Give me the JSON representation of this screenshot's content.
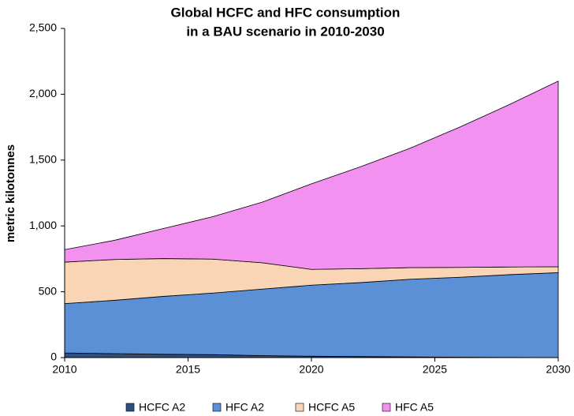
{
  "chart_data": {
    "type": "stacked-area",
    "title": [
      "Global HCFC and HFC consumption",
      "in a BAU scenario in 2010-2030"
    ],
    "y_label": "metric kilotonnes",
    "x": [
      2010,
      2012,
      2014,
      2016,
      2018,
      2020,
      2022,
      2024,
      2026,
      2028,
      2030
    ],
    "xlim": [
      2010,
      2030
    ],
    "xticks": [
      2010,
      2015,
      2020,
      2025,
      2030
    ],
    "ylim": [
      0,
      2500
    ],
    "yticks": [
      0,
      500,
      {
        "value": 1000,
        "label": "1,000"
      },
      {
        "value": 1500,
        "label": "1,500"
      },
      {
        "value": 2000,
        "label": "2,000"
      },
      {
        "value": 2500,
        "label": "2,500"
      }
    ],
    "legend": "bottom",
    "series": [
      {
        "name": "HCFC A2",
        "color": "#2f4f80",
        "values": [
          35,
          30,
          25,
          22,
          15,
          10,
          8,
          5,
          3,
          1,
          0
        ]
      },
      {
        "name": "HFC A2",
        "color": "#5b8fd6",
        "values": [
          375,
          405,
          440,
          468,
          505,
          540,
          562,
          590,
          607,
          629,
          645
        ]
      },
      {
        "name": "HCFC A5",
        "color": "#f9d5b6",
        "values": [
          315,
          310,
          287,
          258,
          200,
          120,
          105,
          88,
          75,
          58,
          45
        ]
      },
      {
        "name": "HFC A5",
        "color": "#f291f0",
        "values": [
          95,
          145,
          228,
          322,
          460,
          650,
          775,
          907,
          1065,
          1232,
          1410
        ]
      }
    ]
  }
}
